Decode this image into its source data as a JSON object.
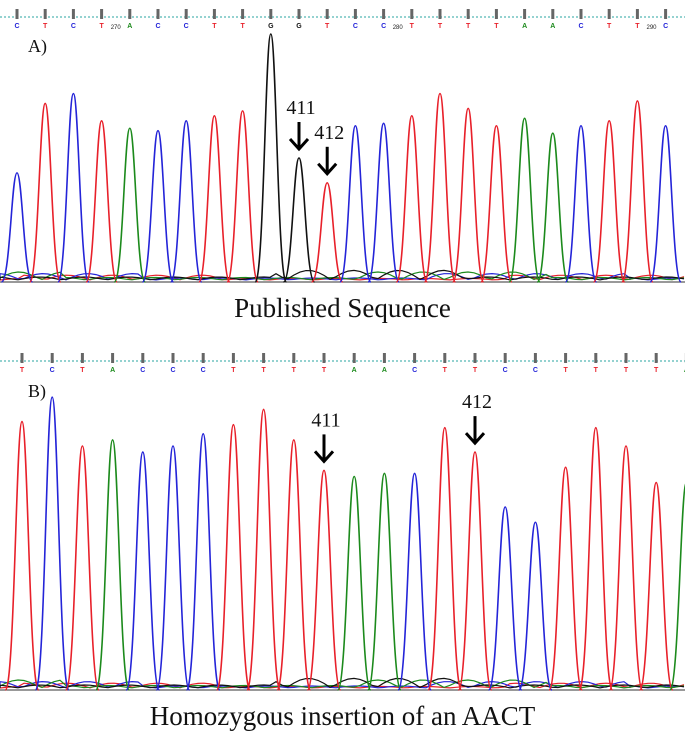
{
  "colors": {
    "A": "#1c8a1c",
    "C": "#2424d8",
    "G": "#111111",
    "T": "#e8202a",
    "ruler": "#2aa6a0"
  },
  "panel_a": {
    "label": "A)",
    "bases": [
      "C",
      "T",
      "C",
      "T",
      "A",
      "C",
      "C",
      "T",
      "T",
      "G",
      "G",
      "T",
      "C",
      "C",
      "T",
      "T",
      "T",
      "T",
      "A",
      "A",
      "C",
      "T",
      "T",
      "C"
    ],
    "position_labels": [
      {
        "text": "270",
        "after_base": 3
      },
      {
        "text": "280",
        "after_base": 13
      },
      {
        "text": "290",
        "after_base": 22
      }
    ],
    "peak_heights": [
      0.44,
      0.72,
      0.76,
      0.65,
      0.62,
      0.61,
      0.65,
      0.67,
      0.69,
      1.0,
      0.5,
      0.4,
      0.63,
      0.64,
      0.67,
      0.76,
      0.7,
      0.63,
      0.66,
      0.6,
      0.63,
      0.65,
      0.73,
      0.63
    ],
    "markers": [
      {
        "text": "411",
        "base_index": 10
      },
      {
        "text": "412",
        "base_index": 11
      }
    ],
    "caption": "Published Sequence"
  },
  "panel_b": {
    "label": "B)",
    "bases": [
      "T",
      "C",
      "T",
      "A",
      "C",
      "C",
      "C",
      "T",
      "T",
      "T",
      "T",
      "A",
      "A",
      "C",
      "T",
      "T",
      "C",
      "C",
      "T",
      "T",
      "T",
      "T",
      "A"
    ],
    "peak_heights": [
      0.88,
      0.96,
      0.8,
      0.82,
      0.78,
      0.8,
      0.84,
      0.87,
      0.92,
      0.82,
      0.72,
      0.7,
      0.71,
      0.71,
      0.86,
      0.78,
      0.6,
      0.55,
      0.73,
      0.86,
      0.8,
      0.68,
      0.68
    ],
    "markers": [
      {
        "text": "411",
        "base_index": 10
      },
      {
        "text": "412",
        "base_index": 15
      }
    ],
    "caption": "Homozygous insertion of an AACT"
  }
}
